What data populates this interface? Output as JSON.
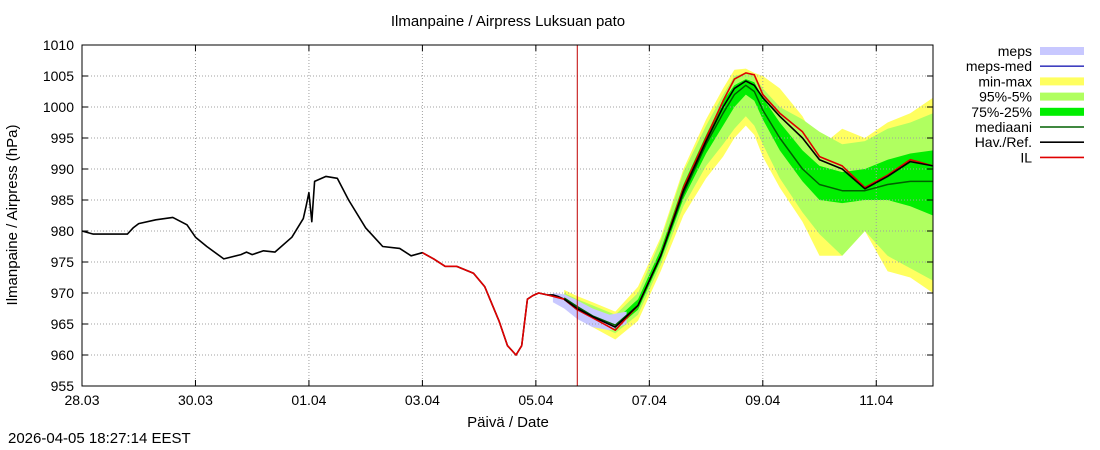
{
  "chart_data": {
    "type": "line",
    "title": "Ilmanpaine / Airpress Luksuan pato",
    "xlabel": "Päivä / Date",
    "ylabel": "Ilmanpaine / Airpress (hPa)",
    "ylim": [
      955,
      1010
    ],
    "yticks": [
      "955",
      "960",
      "965",
      "970",
      "975",
      "980",
      "985",
      "990",
      "995",
      "1000",
      "1005",
      "1010"
    ],
    "xlim": [
      0,
      15
    ],
    "xticks": [
      {
        "pos": 0,
        "label": "28.03"
      },
      {
        "pos": 2,
        "label": "30.03"
      },
      {
        "pos": 4,
        "label": "01.04"
      },
      {
        "pos": 6,
        "label": "03.04"
      },
      {
        "pos": 8,
        "label": "05.04"
      },
      {
        "pos": 10,
        "label": "07.04"
      },
      {
        "pos": 12,
        "label": "09.04"
      },
      {
        "pos": 14,
        "label": "11.04"
      }
    ],
    "grid": true,
    "legend_position": "outside-right",
    "now_marker_x": 8.73,
    "legend": [
      {
        "label": "meps",
        "color": "#c8c8ff",
        "kind": "band"
      },
      {
        "label": "meps-med",
        "color": "#4040c0",
        "kind": "line"
      },
      {
        "label": "min-max",
        "color": "#ffff60",
        "kind": "band"
      },
      {
        "label": "95%-5%",
        "color": "#b0ff60",
        "kind": "band"
      },
      {
        "label": "75%-25%",
        "color": "#00ee00",
        "kind": "band"
      },
      {
        "label": "mediaani",
        "color": "#006000",
        "kind": "line"
      },
      {
        "label": "Hav./Ref.",
        "color": "#000000",
        "kind": "line"
      },
      {
        "label": "IL",
        "color": "#e00000",
        "kind": "line"
      }
    ],
    "series_observed": {
      "name": "Hav./Ref.",
      "x": [
        0,
        0.2,
        0.5,
        0.8,
        0.9,
        1.0,
        1.3,
        1.6,
        1.85,
        2.0,
        2.2,
        2.5,
        2.8,
        2.9,
        3.0,
        3.2,
        3.4,
        3.7,
        3.9,
        3.95,
        4.0,
        4.05,
        4.1,
        4.3,
        4.5,
        4.7,
        5.0,
        5.3,
        5.6,
        5.8,
        6.0,
        6.2,
        6.4,
        6.6,
        6.9,
        7.1,
        7.35,
        7.5,
        7.65,
        7.75,
        7.85,
        7.95,
        8.05,
        8.2,
        8.3,
        8.4,
        8.5,
        8.73
      ],
      "y": [
        980,
        979.5,
        979.5,
        979.5,
        980.5,
        981.2,
        981.8,
        982.2,
        981,
        979,
        977.5,
        975.5,
        976.2,
        976.6,
        976.2,
        976.8,
        976.6,
        979,
        982,
        984,
        986.2,
        981.5,
        988,
        988.8,
        988.5,
        985,
        980.5,
        977.5,
        977.2,
        976,
        976.5,
        975.5,
        974.3,
        974.3,
        973.2,
        971,
        965.5,
        961.5,
        960,
        961.5,
        969,
        969.6,
        970,
        969.7,
        969.7,
        969.4,
        969,
        967.3
      ]
    },
    "series_il": {
      "name": "IL",
      "x": [
        6.0,
        6.2,
        6.4,
        6.6,
        6.9,
        7.1,
        7.35,
        7.5,
        7.65,
        7.75,
        7.85,
        7.95,
        8.05,
        8.2,
        8.5,
        8.73,
        9.0,
        9.4,
        9.8,
        10.2,
        10.6,
        11.0,
        11.3,
        11.5,
        11.7,
        11.85,
        12.0,
        12.3,
        12.7,
        13.0,
        13.4,
        13.8,
        14.2,
        14.6,
        15.0
      ],
      "y": [
        976.5,
        975.5,
        974.3,
        974.3,
        973.2,
        971,
        965.5,
        961.5,
        960,
        961.5,
        969,
        969.6,
        970,
        969.7,
        969,
        967.3,
        966,
        964,
        968,
        976,
        987,
        995,
        1001,
        1004.5,
        1005.5,
        1005.2,
        1002,
        999,
        996,
        992,
        990.5,
        987,
        989,
        991.5,
        990.5
      ]
    },
    "series_median": {
      "name": "mediaani",
      "x": [
        8.5,
        8.73,
        9.0,
        9.4,
        9.8,
        10.2,
        10.6,
        11.0,
        11.3,
        11.5,
        11.7,
        11.85,
        12.0,
        12.3,
        12.7,
        13.0,
        13.4,
        13.8,
        14.2,
        14.6,
        15.0
      ],
      "y": [
        969.2,
        967.8,
        966.3,
        964.8,
        968,
        976,
        986,
        994,
        999,
        1002,
        1003.5,
        1002.5,
        999.5,
        995,
        990,
        987.5,
        986.5,
        986.5,
        987.5,
        988,
        988
      ]
    },
    "series_ref": {
      "name": "Hav./Ref.",
      "x": [
        8.5,
        8.73,
        9.0,
        9.4,
        9.8,
        10.2,
        10.6,
        11.0,
        11.3,
        11.5,
        11.7,
        11.85,
        12.0,
        12.3,
        12.7,
        13.0,
        13.4,
        13.8,
        14.2,
        14.6,
        15.0
      ],
      "y": [
        969,
        967.5,
        966.2,
        964.5,
        968,
        976,
        986.5,
        994.5,
        1000,
        1003,
        1004.2,
        1003.5,
        1001.5,
        998.5,
        995,
        991.5,
        990,
        986.8,
        988.8,
        991.2,
        990.5
      ]
    },
    "band_minmax": {
      "x": [
        8.5,
        8.73,
        9.0,
        9.4,
        9.8,
        10.2,
        10.6,
        11.0,
        11.3,
        11.5,
        11.7,
        11.85,
        12.0,
        12.3,
        12.7,
        13.0,
        13.4,
        13.8,
        14.2,
        14.6,
        15.0
      ],
      "lo": [
        968,
        966,
        964.5,
        962.5,
        965.5,
        973.5,
        982.5,
        988.5,
        992,
        995,
        997,
        995.5,
        992,
        987,
        981.5,
        976,
        976,
        980,
        973.5,
        972.5,
        970
      ],
      "hi": [
        970.5,
        969.5,
        968.5,
        967,
        971,
        979,
        990,
        998,
        1003,
        1006,
        1006.2,
        1005.5,
        1005,
        1003,
        998.5,
        993.5,
        996.5,
        995,
        997.5,
        999,
        1001.5
      ]
    },
    "band_95": {
      "x": [
        8.5,
        8.73,
        9.0,
        9.4,
        9.8,
        10.2,
        10.6,
        11.0,
        11.3,
        11.5,
        11.7,
        11.85,
        12.0,
        12.3,
        12.7,
        13.0,
        13.4,
        13.8,
        14.2,
        14.6,
        15.0
      ],
      "lo": [
        968.5,
        966.8,
        965.2,
        963.5,
        966.5,
        974.5,
        984,
        990.5,
        994,
        996.5,
        998.5,
        997,
        994,
        988.5,
        983,
        979.5,
        976,
        980,
        976,
        974,
        972
      ],
      "hi": [
        970,
        969,
        968,
        966.5,
        970,
        978.5,
        989.5,
        997,
        1002,
        1005,
        1005.5,
        1005,
        1003,
        1000,
        998,
        996,
        994,
        994.5,
        996.5,
        997.5,
        999
      ]
    },
    "band_75": {
      "x": [
        8.5,
        8.73,
        9.0,
        9.4,
        9.8,
        10.2,
        10.6,
        11.0,
        11.3,
        11.5,
        11.7,
        11.85,
        12.0,
        12.3,
        12.7,
        13.0,
        13.4,
        13.8,
        14.2,
        14.6,
        15.0
      ],
      "lo": [
        968.8,
        967.3,
        965.8,
        964.2,
        967.3,
        975.3,
        985.2,
        992.5,
        997,
        1000,
        1002,
        1001,
        998,
        993,
        988,
        985,
        984.5,
        985,
        985,
        984,
        982.5
      ],
      "hi": [
        969.6,
        968.3,
        967,
        965.6,
        969,
        977,
        987.5,
        995.5,
        1001,
        1003.5,
        1004.5,
        1004,
        1001.5,
        997.5,
        993,
        990.5,
        989.5,
        990,
        991.5,
        992.5,
        993
      ]
    },
    "band_meps": {
      "x": [
        8.3,
        8.5,
        8.73,
        9.0,
        9.3,
        9.6
      ],
      "lo": [
        968.5,
        967.5,
        965.8,
        964.5,
        964,
        965
      ],
      "hi": [
        970,
        969.8,
        968.8,
        967.5,
        966.5,
        967
      ]
    }
  },
  "footer": {
    "timestamp": "2026-04-05 18:27:14 EEST"
  }
}
